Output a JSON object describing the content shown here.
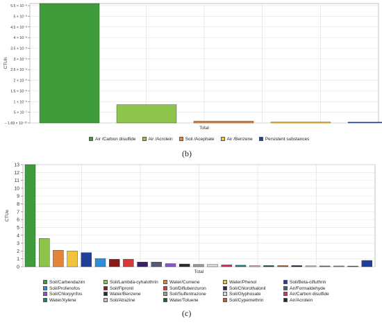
{
  "panel_b_caption": "(b)",
  "panel_c_caption": "(c)",
  "chart_data": [
    {
      "type": "bar",
      "ylabel": "CTUh",
      "xlabel": "Total",
      "ytick_labels": [
        "5.5 × 10⁻⁶",
        "5 × 10⁻⁶",
        "4.5 × 10⁻⁶",
        "4 × 10⁻⁶",
        "3.5 × 10⁻⁶",
        "3 × 10⁻⁶",
        "2.5 × 10⁻⁶",
        "2 × 10⁻⁶",
        "1.5 × 10⁻⁶",
        "1 × 10⁻⁶",
        "5 × 10⁻⁷",
        "− 1.69 × 10⁻²¹"
      ],
      "ytick_values": [
        5.5e-06,
        5e-06,
        4.5e-06,
        4e-06,
        3.5e-06,
        3e-06,
        2.5e-06,
        2e-06,
        1.5e-06,
        1e-06,
        5e-07,
        0
      ],
      "ylim": [
        0,
        5.6e-06
      ],
      "grid": true,
      "legend_position": "bottom",
      "series": [
        {
          "name": "Air  /Carbon disulfide",
          "value": 5.6e-06,
          "color": "#3e9d3a"
        },
        {
          "name": "Air  /Acrolein",
          "value": 8.6e-07,
          "color": "#8cc44c"
        },
        {
          "name": "Soil  /Acephate",
          "value": 8.5e-08,
          "color": "#e4843a"
        },
        {
          "name": "Air  /Benzene",
          "value": 2e-08,
          "color": "#f2c43a"
        },
        {
          "name": "Persistent substances",
          "value": 1e-08,
          "color": "#1f3f9b"
        }
      ]
    },
    {
      "type": "bar",
      "ylabel": "CTUe",
      "xlabel": "Total",
      "ytick_labels": [
        "0",
        "1",
        "2",
        "3",
        "4",
        "5",
        "6",
        "7",
        "8",
        "9",
        "10",
        "11",
        "12",
        "13"
      ],
      "ylim": [
        0,
        13
      ],
      "grid": true,
      "legend_position": "bottom",
      "series": [
        {
          "name": "Soil/Carbendazim",
          "value": 13.0,
          "color": "#3e9d3a"
        },
        {
          "name": "Soil/Lambda-cyhalothrin",
          "value": 3.6,
          "color": "#8cc44c"
        },
        {
          "name": "Water/Cumene",
          "value": 2.1,
          "color": "#e4843a"
        },
        {
          "name": "Water/Phenol",
          "value": 2.0,
          "color": "#f2c43a"
        },
        {
          "name": "Soil/Beta-cifluthrin",
          "value": 1.8,
          "color": "#1f3f9b"
        },
        {
          "name": "Soil/Profenofos",
          "value": 1.05,
          "color": "#2f8fd6"
        },
        {
          "name": "Soil/Fipronil",
          "value": 0.95,
          "color": "#8b1a1a"
        },
        {
          "name": "Soil/Diflubenzuron",
          "value": 0.95,
          "color": "#d63a3a"
        },
        {
          "name": "Soil/Chlorothalonil",
          "value": 0.6,
          "color": "#3a1f6b"
        },
        {
          "name": "Air/Formaldehyde",
          "value": 0.6,
          "color": "#5a5a72"
        },
        {
          "name": "Soil/Chlorpyrifos",
          "value": 0.4,
          "color": "#8a55c8"
        },
        {
          "name": "Water/Benzene",
          "value": 0.35,
          "color": "#2a2a2a"
        },
        {
          "name": "Soil/Sulfentrazone",
          "value": 0.3,
          "color": "#9a9a9a"
        },
        {
          "name": "Soil/Glyphosate",
          "value": 0.3,
          "color": "#d6d6e6"
        },
        {
          "name": "Air/Carbon disulfide",
          "value": 0.25,
          "color": "#d6336c"
        },
        {
          "name": "Water/Xylene",
          "value": 0.2,
          "color": "#2a7a7a"
        },
        {
          "name": "Soil/Atrazine",
          "value": 0.15,
          "color": "#e4b0c8"
        },
        {
          "name": "Water/Toluene",
          "value": 0.15,
          "color": "#1f5f3a"
        },
        {
          "name": "Soil/Cypemethrin",
          "value": 0.15,
          "color": "#c0612a"
        },
        {
          "name": "Air/Acrolein",
          "value": 0.15,
          "color": "#1f2a4a"
        },
        {
          "name": "",
          "value": 0.12,
          "color": "#c0c0c0"
        },
        {
          "name": "",
          "value": 0.1,
          "color": "#6a6a6a"
        },
        {
          "name": "",
          "value": 0.1,
          "color": "#8a8a8a"
        },
        {
          "name": "",
          "value": 0.08,
          "color": "#5a5a5a"
        },
        {
          "name": "",
          "value": 0.8,
          "color": "#1f3f9b"
        }
      ]
    }
  ]
}
